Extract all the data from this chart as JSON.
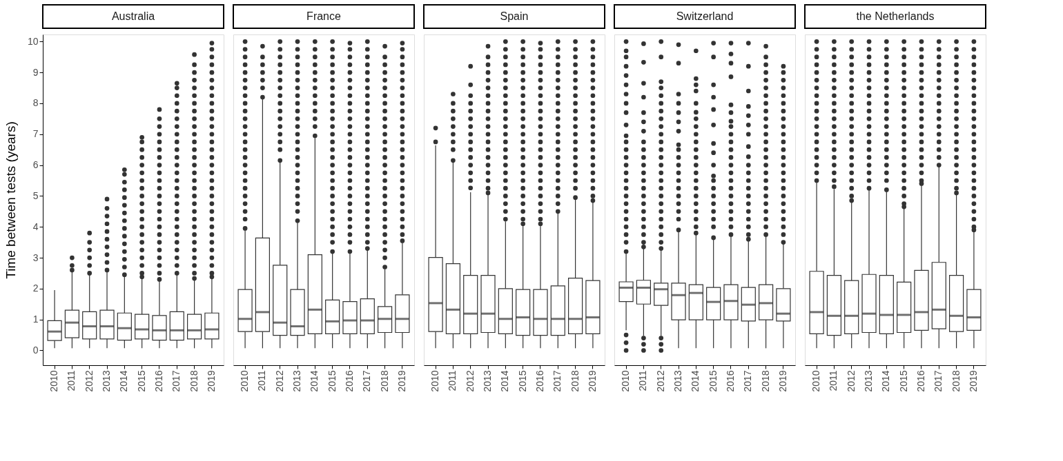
{
  "chart_data": [
    {
      "type": "box",
      "title": "Australia",
      "ylabel": "Time between tests (years)",
      "color": "#333333",
      "ylim": [
        -0.48,
        10.23
      ],
      "yticks": [
        0,
        1,
        2,
        3,
        4,
        5,
        6,
        7,
        8,
        9,
        10
      ],
      "categories": [
        "2010",
        "2011",
        "2012",
        "2013",
        "2014",
        "2015",
        "2016",
        "2017",
        "2018",
        "2019"
      ],
      "boxes": [
        {
          "low": 0.07,
          "q1": 0.32,
          "median": 0.61,
          "q3": 0.96,
          "high": 1.95
        },
        {
          "low": 0.07,
          "q1": 0.41,
          "median": 0.9,
          "q3": 1.3,
          "high": 2.55,
          "outliers": [
            2.6,
            2.75,
            3.0
          ]
        },
        {
          "low": 0.07,
          "q1": 0.37,
          "median": 0.78,
          "q3": 1.25,
          "high": 2.45,
          "outliers": [
            2.5,
            2.75,
            3,
            3.25,
            3.5,
            3.8
          ]
        },
        {
          "low": 0.07,
          "q1": 0.37,
          "median": 0.78,
          "q3": 1.3,
          "high": 2.55,
          "outliers": [
            2.6,
            2.85,
            3.1,
            3.35,
            3.6,
            3.85,
            4.1,
            4.35,
            4.6,
            4.9
          ]
        },
        {
          "low": 0.07,
          "q1": 0.33,
          "median": 0.72,
          "q3": 1.21,
          "high": 2.4,
          "outliers": [
            2.45,
            2.7,
            2.95,
            3.2,
            3.45,
            3.7,
            3.95,
            4.2,
            4.45,
            4.7,
            4.95,
            5.2,
            5.45,
            5.7,
            5.85
          ]
        },
        {
          "low": 0.07,
          "q1": 0.37,
          "median": 0.68,
          "q3": 1.17,
          "high": 2.33,
          "outliers": [
            2.38,
            2.5,
            2.75,
            3,
            3.25,
            3.5,
            3.75,
            4,
            4.25,
            4.5,
            4.75,
            5,
            5.25,
            5.5,
            5.75,
            6,
            6.25,
            6.5,
            6.75,
            6.9
          ]
        },
        {
          "low": 0.07,
          "q1": 0.33,
          "median": 0.65,
          "q3": 1.13,
          "high": 2.25,
          "outliers": [
            2.3,
            2.5,
            2.75,
            3,
            3.25,
            3.5,
            3.75,
            4,
            4.25,
            4.5,
            4.75,
            5,
            5.25,
            5.5,
            5.75,
            6,
            6.25,
            6.5,
            6.75,
            7,
            7.25,
            7.5,
            7.8
          ]
        },
        {
          "low": 0.07,
          "q1": 0.33,
          "median": 0.65,
          "q3": 1.25,
          "high": 2.45,
          "outliers": [
            2.5,
            2.75,
            3,
            3.25,
            3.5,
            3.75,
            4,
            4.25,
            4.5,
            4.75,
            5,
            5.25,
            5.5,
            5.75,
            6,
            6.25,
            6.5,
            6.75,
            7,
            7.25,
            7.5,
            7.75,
            8,
            8.25,
            8.5,
            8.65
          ]
        },
        {
          "low": 0.07,
          "q1": 0.37,
          "median": 0.65,
          "q3": 1.17,
          "high": 2.28,
          "outliers": [
            2.33,
            2.5,
            2.75,
            3,
            3.25,
            3.5,
            3.75,
            4,
            4.25,
            4.5,
            4.75,
            5,
            5.25,
            5.5,
            5.75,
            6,
            6.25,
            6.5,
            6.75,
            7,
            7.25,
            7.5,
            7.75,
            8,
            8.25,
            8.5,
            8.75,
            9,
            9.25,
            9.58
          ]
        },
        {
          "low": 0.07,
          "q1": 0.37,
          "median": 0.68,
          "q3": 1.21,
          "high": 2.33,
          "outliers": [
            2.38,
            2.5,
            2.75,
            3,
            3.25,
            3.5,
            3.75,
            4,
            4.25,
            4.5,
            4.75,
            5,
            5.25,
            5.5,
            5.75,
            6,
            6.25,
            6.5,
            6.75,
            7,
            7.25,
            7.5,
            7.75,
            8,
            8.25,
            8.5,
            8.75,
            9,
            9.25,
            9.5,
            9.75,
            9.95
          ]
        }
      ]
    },
    {
      "type": "box",
      "title": "France",
      "color": "#333333",
      "ylim": [
        -0.48,
        10.23
      ],
      "yticks": [
        0,
        1,
        2,
        3,
        4,
        5,
        6,
        7,
        8,
        9,
        10
      ],
      "tick_labels": "x",
      "categories": [
        "2010",
        "2011",
        "2012",
        "2013",
        "2014",
        "2015",
        "2016",
        "2017",
        "2018",
        "2019"
      ],
      "boxes": [
        {
          "low": 0.07,
          "q1": 0.61,
          "median": 1.02,
          "q3": 1.97,
          "high": 3.89,
          "outliers": [
            3.95,
            4.25,
            4.5,
            4.75,
            5,
            5.25,
            5.5,
            5.75,
            6,
            6.25,
            6.5,
            6.75,
            7,
            7.25,
            7.5,
            7.75,
            8,
            8.25,
            8.5,
            8.75,
            9,
            9.25,
            9.5,
            9.75,
            10
          ]
        },
        {
          "low": 0.07,
          "q1": 0.61,
          "median": 1.24,
          "q3": 3.64,
          "high": 8.14,
          "outliers": [
            8.2,
            8.5,
            8.75,
            9,
            9.25,
            9.5,
            9.85
          ]
        },
        {
          "low": 0.07,
          "q1": 0.49,
          "median": 0.9,
          "q3": 2.76,
          "high": 6.09,
          "outliers": [
            6.15,
            6.5,
            6.75,
            7,
            7.25,
            7.5,
            7.75,
            8,
            8.25,
            8.5,
            8.75,
            9,
            9.25,
            9.5,
            9.75,
            10
          ]
        },
        {
          "low": 0.07,
          "q1": 0.49,
          "median": 0.78,
          "q3": 1.97,
          "high": 4.14,
          "outliers": [
            4.2,
            4.5,
            4.75,
            5,
            5.25,
            5.5,
            5.75,
            6,
            6.25,
            6.5,
            6.75,
            7,
            7.25,
            7.5,
            7.75,
            8,
            8.25,
            8.5,
            8.75,
            9,
            9.25,
            9.5,
            9.75,
            10
          ]
        },
        {
          "low": 0.07,
          "q1": 0.54,
          "median": 1.32,
          "q3": 3.1,
          "high": 6.88,
          "outliers": [
            6.95,
            7.25,
            7.5,
            7.75,
            8,
            8.25,
            8.5,
            8.75,
            9,
            9.25,
            9.5,
            9.75,
            10
          ]
        },
        {
          "low": 0.07,
          "q1": 0.54,
          "median": 0.94,
          "q3": 1.63,
          "high": 3.17,
          "outliers": [
            3.2,
            3.5,
            3.75,
            4,
            4.25,
            4.5,
            4.75,
            5,
            5.25,
            5.5,
            5.75,
            6,
            6.25,
            6.5,
            6.75,
            7,
            7.25,
            7.5,
            7.75,
            8,
            8.25,
            8.5,
            8.75,
            9,
            9.25,
            9.5,
            9.75,
            10
          ]
        },
        {
          "low": 0.07,
          "q1": 0.54,
          "median": 0.97,
          "q3": 1.58,
          "high": 3.13,
          "outliers": [
            3.2,
            3.5,
            3.75,
            4,
            4.25,
            4.5,
            4.75,
            5,
            5.25,
            5.5,
            5.75,
            6,
            6.25,
            6.5,
            6.75,
            7,
            7.25,
            7.5,
            7.75,
            8,
            8.25,
            8.5,
            8.75,
            9,
            9.25,
            9.5,
            9.75,
            9.95
          ]
        },
        {
          "low": 0.07,
          "q1": 0.54,
          "median": 0.97,
          "q3": 1.67,
          "high": 3.28,
          "outliers": [
            3.3,
            3.5,
            3.75,
            4,
            4.25,
            4.5,
            4.75,
            5,
            5.25,
            5.5,
            5.75,
            6,
            6.25,
            6.5,
            6.75,
            7,
            7.25,
            7.5,
            7.75,
            8,
            8.25,
            8.5,
            8.75,
            9,
            9.25,
            9.5,
            9.75,
            10
          ]
        },
        {
          "low": 0.07,
          "q1": 0.58,
          "median": 1.02,
          "q3": 1.42,
          "high": 2.63,
          "outliers": [
            2.7,
            3,
            3.25,
            3.5,
            3.75,
            4,
            4.25,
            4.5,
            4.75,
            5,
            5.25,
            5.5,
            5.75,
            6,
            6.25,
            6.5,
            6.75,
            7,
            7.25,
            7.5,
            7.75,
            8,
            8.25,
            8.5,
            8.75,
            9,
            9.25,
            9.5,
            9.85
          ]
        },
        {
          "low": 0.07,
          "q1": 0.58,
          "median": 1.02,
          "q3": 1.8,
          "high": 3.49,
          "outliers": [
            3.55,
            3.75,
            4,
            4.25,
            4.5,
            4.75,
            5,
            5.25,
            5.5,
            5.75,
            6,
            6.25,
            6.5,
            6.75,
            7,
            7.25,
            7.5,
            7.75,
            8,
            8.25,
            8.5,
            8.75,
            9,
            9.25,
            9.5,
            9.75,
            9.95
          ]
        }
      ]
    },
    {
      "type": "box",
      "title": "Spain",
      "color": "#333333",
      "ylim": [
        -0.48,
        10.23
      ],
      "yticks": [
        0,
        1,
        2,
        3,
        4,
        5,
        6,
        7,
        8,
        9,
        10
      ],
      "tick_labels": "x",
      "categories": [
        "2010",
        "2011",
        "2012",
        "2013",
        "2014",
        "2015",
        "2016",
        "2017",
        "2018",
        "2019"
      ],
      "boxes": [
        {
          "low": 0.07,
          "q1": 0.61,
          "median": 1.53,
          "q3": 3.01,
          "high": 6.64,
          "outliers": [
            6.75,
            7.2
          ]
        },
        {
          "low": 0.07,
          "q1": 0.54,
          "median": 1.32,
          "q3": 2.81,
          "high": 6.09,
          "outliers": [
            6.15,
            6.5,
            6.75,
            7,
            7.25,
            7.5,
            7.75,
            8,
            8.3
          ]
        },
        {
          "low": 0.07,
          "q1": 0.54,
          "median": 1.19,
          "q3": 2.43,
          "high": 5.12,
          "outliers": [
            5.26,
            5.5,
            5.75,
            6,
            6.25,
            6.5,
            6.75,
            7,
            7.25,
            7.5,
            7.75,
            8,
            8.25,
            8.6,
            9.2
          ]
        },
        {
          "low": 0.07,
          "q1": 0.58,
          "median": 1.19,
          "q3": 2.43,
          "high": 5.04,
          "outliers": [
            5.1,
            5.25,
            5.5,
            5.75,
            6,
            6.25,
            6.5,
            6.75,
            7,
            7.25,
            7.5,
            7.75,
            8,
            8.25,
            8.5,
            8.75,
            9,
            9.25,
            9.5,
            9.85
          ]
        },
        {
          "low": 0.07,
          "q1": 0.54,
          "median": 1.02,
          "q3": 2.0,
          "high": 4.18,
          "outliers": [
            4.25,
            4.5,
            4.75,
            5,
            5.25,
            5.5,
            5.75,
            6,
            6.25,
            6.5,
            6.75,
            7,
            7.25,
            7.5,
            7.75,
            8,
            8.25,
            8.5,
            8.75,
            9,
            9.25,
            9.5,
            9.75,
            10
          ]
        },
        {
          "low": 0.07,
          "q1": 0.49,
          "median": 1.07,
          "q3": 1.97,
          "high": 4.07,
          "outliers": [
            4.1,
            4.25,
            4.5,
            4.75,
            5,
            5.25,
            5.5,
            5.75,
            6,
            6.25,
            6.5,
            6.75,
            7,
            7.25,
            7.5,
            7.75,
            8,
            8.25,
            8.5,
            8.75,
            9,
            9.25,
            9.5,
            9.75,
            10
          ]
        },
        {
          "low": 0.07,
          "q1": 0.49,
          "median": 1.02,
          "q3": 1.97,
          "high": 4.07,
          "outliers": [
            4.1,
            4.25,
            4.5,
            4.75,
            5,
            5.25,
            5.5,
            5.75,
            6,
            6.25,
            6.5,
            6.75,
            7,
            7.25,
            7.5,
            7.75,
            8,
            8.25,
            8.5,
            8.75,
            9,
            9.25,
            9.5,
            9.75,
            9.95
          ]
        },
        {
          "low": 0.07,
          "q1": 0.49,
          "median": 1.02,
          "q3": 2.09,
          "high": 4.43,
          "outliers": [
            4.5,
            4.75,
            5,
            5.25,
            5.5,
            5.75,
            6,
            6.25,
            6.5,
            6.75,
            7,
            7.25,
            7.5,
            7.75,
            8,
            8.25,
            8.5,
            8.75,
            9,
            9.25,
            9.5,
            9.75,
            10
          ]
        },
        {
          "low": 0.07,
          "q1": 0.54,
          "median": 1.02,
          "q3": 2.34,
          "high": 4.9,
          "outliers": [
            4.95,
            5.25,
            5.5,
            5.75,
            6,
            6.25,
            6.5,
            6.75,
            7,
            7.25,
            7.5,
            7.75,
            8,
            8.25,
            8.5,
            8.75,
            9,
            9.25,
            9.5,
            9.75,
            10
          ]
        },
        {
          "low": 0.07,
          "q1": 0.54,
          "median": 1.07,
          "q3": 2.26,
          "high": 4.79,
          "outliers": [
            4.85,
            5,
            5.25,
            5.5,
            5.75,
            6,
            6.25,
            6.5,
            6.75,
            7,
            7.25,
            7.5,
            7.75,
            8,
            8.25,
            8.5,
            8.75,
            9,
            9.25,
            9.5,
            9.75,
            10
          ]
        }
      ]
    },
    {
      "type": "box",
      "title": "Switzerland",
      "color": "#333333",
      "ylim": [
        -0.48,
        10.23
      ],
      "yticks": [
        0,
        1,
        2,
        3,
        4,
        5,
        6,
        7,
        8,
        9,
        10
      ],
      "tick_labels": "x",
      "categories": [
        "2010",
        "2011",
        "2012",
        "2013",
        "2014",
        "2015",
        "2016",
        "2017",
        "2018",
        "2019"
      ],
      "boxes": [
        {
          "low": 0.65,
          "q1": 1.58,
          "median": 2.03,
          "q3": 2.22,
          "high": 3.13,
          "outliers": [
            0,
            0.25,
            0.5,
            3.2,
            3.5,
            3.75,
            4,
            4.25,
            4.5,
            4.75,
            5,
            5.25,
            5.5,
            5.75,
            6,
            6.25,
            6.5,
            6.75,
            6.95,
            7.3,
            7.7,
            8.0,
            8.3,
            8.6,
            8.9,
            9.2,
            9.5,
            9.7,
            10
          ]
        },
        {
          "low": 0.47,
          "q1": 1.5,
          "median": 2.03,
          "q3": 2.27,
          "high": 3.31,
          "outliers": [
            0,
            0.2,
            0.4,
            3.35,
            3.5,
            3.75,
            4,
            4.25,
            4.5,
            4.75,
            5,
            5.25,
            5.5,
            5.75,
            6,
            6.25,
            6.5,
            6.75,
            7.1,
            7.4,
            7.7,
            8.2,
            8.65,
            9.33,
            9.93
          ]
        },
        {
          "low": 0.47,
          "q1": 1.46,
          "median": 1.98,
          "q3": 2.18,
          "high": 3.24,
          "outliers": [
            0,
            0.2,
            0.4,
            3.3,
            3.5,
            3.75,
            4,
            4.25,
            4.5,
            4.75,
            5,
            5.25,
            5.5,
            5.75,
            6,
            6.25,
            6.5,
            6.75,
            7,
            7.25,
            7.5,
            7.75,
            8,
            8.25,
            8.5,
            8.7,
            9.5,
            10
          ]
        },
        {
          "low": 0.07,
          "q1": 0.99,
          "median": 1.79,
          "q3": 2.18,
          "high": 3.85,
          "outliers": [
            3.9,
            4.25,
            4.5,
            4.75,
            5,
            5.25,
            5.5,
            5.75,
            6,
            6.25,
            6.5,
            6.66,
            7.1,
            7.4,
            7.7,
            8.0,
            8.3,
            9.3,
            9.9
          ]
        },
        {
          "low": 0.07,
          "q1": 0.99,
          "median": 1.86,
          "q3": 2.13,
          "high": 3.78,
          "outliers": [
            3.8,
            4,
            4.25,
            4.5,
            4.75,
            5,
            5.25,
            5.5,
            5.75,
            6,
            6.25,
            6.5,
            6.75,
            7,
            7.25,
            7.5,
            7.71,
            8.0,
            8.4,
            8.6,
            8.8,
            9.7
          ]
        },
        {
          "low": 0.07,
          "q1": 0.99,
          "median": 1.57,
          "q3": 2.04,
          "high": 3.6,
          "outliers": [
            3.65,
            4,
            4.25,
            4.5,
            4.75,
            5,
            5.25,
            5.5,
            5.65,
            6.0,
            6.4,
            6.7,
            7.3,
            7.8,
            8.2,
            8.6,
            9.5,
            9.95
          ]
        },
        {
          "low": 0.07,
          "q1": 0.99,
          "median": 1.6,
          "q3": 2.13,
          "high": 3.71,
          "outliers": [
            3.75,
            4,
            4.25,
            4.5,
            4.75,
            5,
            5.25,
            5.5,
            5.75,
            6,
            6.25,
            6.5,
            6.75,
            7,
            7.25,
            7.42,
            7.7,
            7.95,
            8.86,
            9.3,
            9.6,
            9.95
          ]
        },
        {
          "low": 0.07,
          "q1": 0.95,
          "median": 1.48,
          "q3": 2.04,
          "high": 3.57,
          "outliers": [
            3.6,
            3.75,
            4,
            4.25,
            4.5,
            4.75,
            5,
            5.25,
            5.5,
            5.75,
            6,
            6.27,
            6.6,
            7.0,
            7.3,
            7.6,
            7.9,
            8.4,
            9.2,
            9.95
          ]
        },
        {
          "low": 0.07,
          "q1": 0.99,
          "median": 1.53,
          "q3": 2.13,
          "high": 3.71,
          "outliers": [
            3.75,
            4,
            4.25,
            4.5,
            4.75,
            5,
            5.25,
            5.5,
            5.75,
            6,
            6.25,
            6.5,
            6.75,
            7,
            7.25,
            7.5,
            7.75,
            8,
            8.25,
            8.5,
            8.75,
            9,
            9.25,
            9.5,
            9.85
          ]
        },
        {
          "low": 0.07,
          "q1": 0.95,
          "median": 1.19,
          "q3": 2.0,
          "high": 3.46,
          "outliers": [
            3.5,
            3.75,
            4,
            4.25,
            4.5,
            4.75,
            5,
            5.25,
            5.5,
            5.75,
            6,
            6.25,
            6.5,
            6.75,
            7,
            7.25,
            7.5,
            7.75,
            8,
            8.25,
            8.5,
            8.75,
            9,
            9.2
          ]
        }
      ]
    },
    {
      "type": "box",
      "title": "the Netherlands",
      "color": "#333333",
      "ylim": [
        -0.48,
        10.23
      ],
      "yticks": [
        0,
        1,
        2,
        3,
        4,
        5,
        6,
        7,
        8,
        9,
        10
      ],
      "tick_labels": "x",
      "categories": [
        "2010",
        "2011",
        "2012",
        "2013",
        "2014",
        "2015",
        "2016",
        "2017",
        "2018",
        "2019"
      ],
      "boxes": [
        {
          "low": 0.07,
          "q1": 0.54,
          "median": 1.24,
          "q3": 2.56,
          "high": 5.44,
          "outliers": [
            5.5,
            5.75,
            6,
            6.25,
            6.5,
            6.75,
            7,
            7.25,
            7.5,
            7.75,
            8,
            8.25,
            8.5,
            8.75,
            9,
            9.25,
            9.5,
            9.75,
            10
          ]
        },
        {
          "low": 0.07,
          "q1": 0.49,
          "median": 1.12,
          "q3": 2.43,
          "high": 5.22,
          "outliers": [
            5.3,
            5.5,
            5.75,
            6,
            6.25,
            6.5,
            6.75,
            7,
            7.25,
            7.5,
            7.75,
            8,
            8.25,
            8.5,
            8.75,
            9,
            9.25,
            9.5,
            9.75,
            10
          ]
        },
        {
          "low": 0.07,
          "q1": 0.54,
          "median": 1.12,
          "q3": 2.26,
          "high": 4.79,
          "outliers": [
            4.85,
            5,
            5.25,
            5.5,
            5.75,
            6,
            6.25,
            6.5,
            6.75,
            7,
            7.25,
            7.5,
            7.75,
            8,
            8.25,
            8.5,
            8.75,
            9,
            9.25,
            9.5,
            9.75,
            10
          ]
        },
        {
          "low": 0.07,
          "q1": 0.58,
          "median": 1.19,
          "q3": 2.46,
          "high": 5.19,
          "outliers": [
            5.25,
            5.5,
            5.75,
            6,
            6.25,
            6.5,
            6.75,
            7,
            7.25,
            7.5,
            7.75,
            8,
            8.25,
            8.5,
            8.75,
            9,
            9.25,
            9.5,
            9.75,
            10
          ]
        },
        {
          "low": 0.07,
          "q1": 0.54,
          "median": 1.15,
          "q3": 2.43,
          "high": 5.15,
          "outliers": [
            5.2,
            5.5,
            5.75,
            6,
            6.25,
            6.5,
            6.75,
            7,
            7.25,
            7.5,
            7.75,
            8,
            8.25,
            8.5,
            8.75,
            9,
            9.25,
            9.5,
            9.75,
            10
          ]
        },
        {
          "low": 0.07,
          "q1": 0.58,
          "median": 1.15,
          "q3": 2.21,
          "high": 4.61,
          "outliers": [
            4.65,
            4.75,
            5,
            5.25,
            5.5,
            5.75,
            6,
            6.25,
            6.5,
            6.75,
            7,
            7.25,
            7.5,
            7.75,
            8,
            8.25,
            8.5,
            8.75,
            9,
            9.25,
            9.5,
            9.75,
            10
          ]
        },
        {
          "low": 0.07,
          "q1": 0.65,
          "median": 1.24,
          "q3": 2.59,
          "high": 5.37,
          "outliers": [
            5.4,
            5.5,
            5.75,
            6,
            6.25,
            6.5,
            6.75,
            7,
            7.25,
            7.5,
            7.75,
            8,
            8.25,
            8.5,
            8.75,
            9,
            9.25,
            9.5,
            9.75,
            10
          ]
        },
        {
          "low": 0.07,
          "q1": 0.7,
          "median": 1.32,
          "q3": 2.85,
          "high": 5.94,
          "outliers": [
            6,
            6.25,
            6.5,
            6.75,
            7,
            7.25,
            7.5,
            7.75,
            8,
            8.25,
            8.5,
            8.75,
            9,
            9.25,
            9.5,
            9.75,
            10
          ]
        },
        {
          "low": 0.07,
          "q1": 0.61,
          "median": 1.12,
          "q3": 2.43,
          "high": 5.04,
          "outliers": [
            5.1,
            5.25,
            5.5,
            5.75,
            6,
            6.25,
            6.5,
            6.75,
            7,
            7.25,
            7.5,
            7.75,
            8,
            8.25,
            8.5,
            8.75,
            9,
            9.25,
            9.5,
            9.75,
            10
          ]
        },
        {
          "low": 0.07,
          "q1": 0.65,
          "median": 1.07,
          "q3": 1.97,
          "high": 3.85,
          "outliers": [
            3.9,
            4,
            4.25,
            4.5,
            4.75,
            5,
            5.25,
            5.5,
            5.75,
            6,
            6.25,
            6.5,
            6.75,
            7,
            7.25,
            7.5,
            7.75,
            8,
            8.25,
            8.5,
            8.75,
            9,
            9.25,
            9.5,
            9.75,
            10
          ]
        }
      ]
    }
  ]
}
